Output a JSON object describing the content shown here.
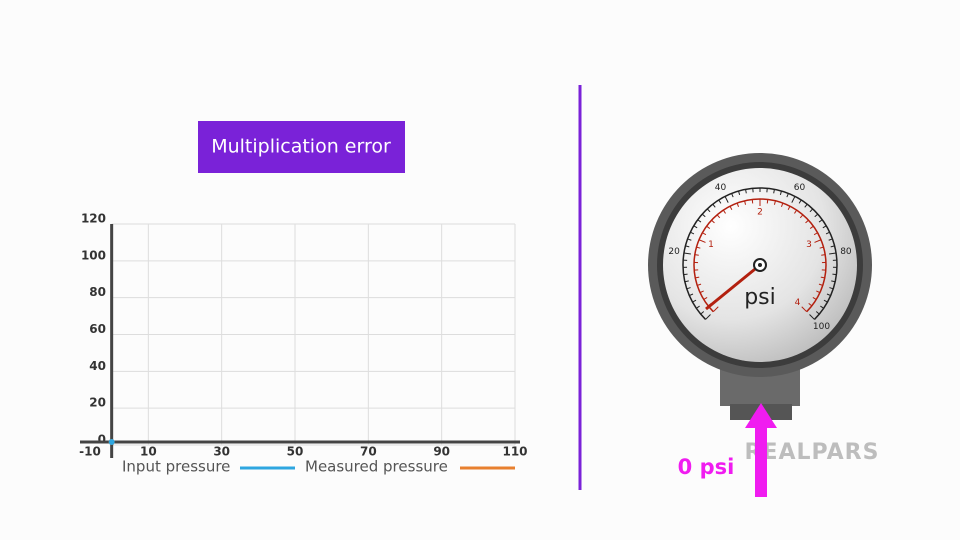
{
  "chart_data": {
    "type": "line",
    "title": "Multiplication error",
    "x": [
      0
    ],
    "series": [
      {
        "name": "Input pressure",
        "color": "#2ea6e0",
        "values": [
          0
        ]
      },
      {
        "name": "Measured pressure",
        "color": "#e8802f",
        "values": [
          0
        ]
      }
    ],
    "xlim": [
      -10,
      110
    ],
    "xticks": [
      -10,
      10,
      30,
      50,
      70,
      90,
      110
    ],
    "ylim": [
      0,
      120
    ],
    "yticks": [
      0,
      20,
      40,
      60,
      80,
      100,
      120
    ],
    "grid": true
  },
  "gauge": {
    "unit": "psi",
    "outer_ticks": [
      20,
      40,
      60,
      80,
      100
    ],
    "outer_max": 100,
    "inner_ticks": [
      1,
      2,
      3,
      4
    ],
    "inner_max": 4,
    "reading": "0 psi"
  },
  "logo": "REALPARS"
}
